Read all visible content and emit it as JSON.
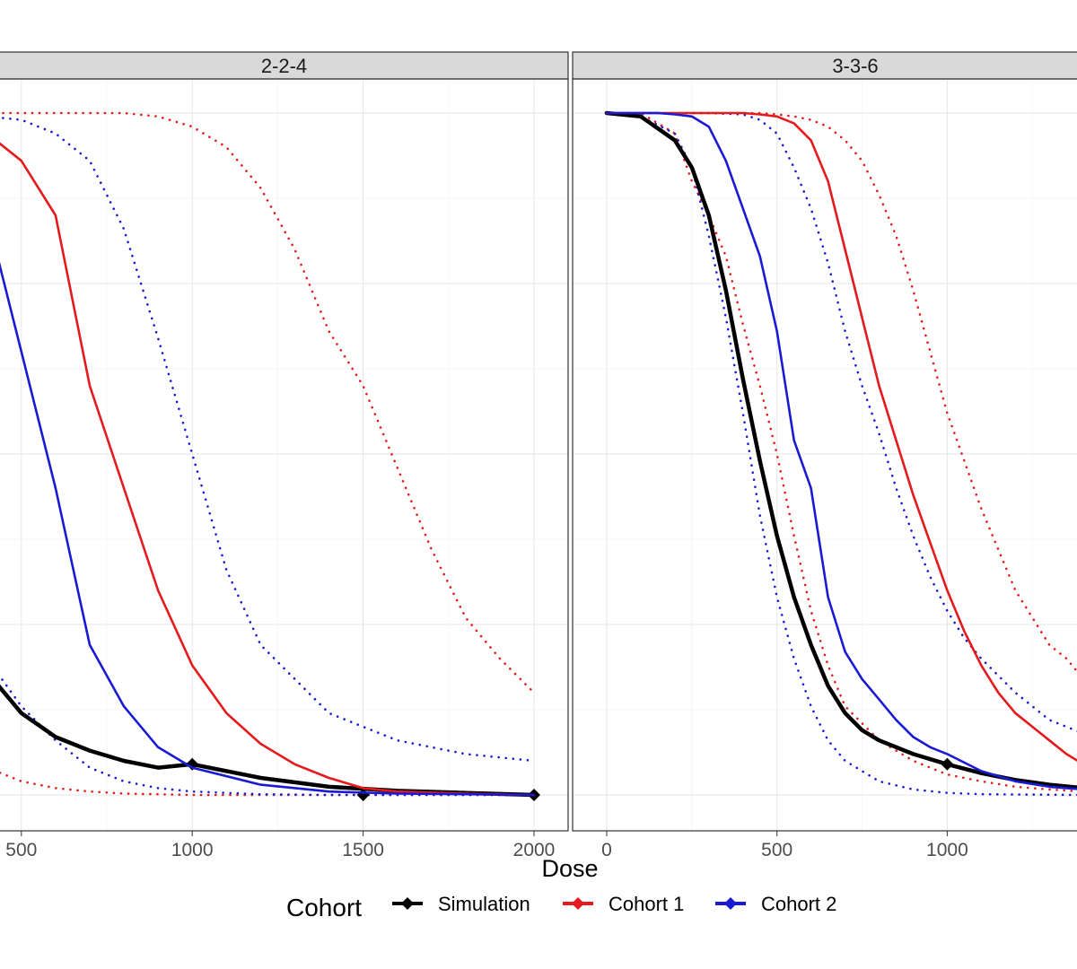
{
  "chart_data": {
    "type": "line",
    "xlabel": "Dose",
    "legend": {
      "title": "Cohort",
      "position": "bottom",
      "entries": [
        {
          "name": "Simulation",
          "color": "#000000"
        },
        {
          "name": "Cohort 1",
          "color": "#e41a1c"
        },
        {
          "name": "Cohort 2",
          "color": "#1a1ad4"
        }
      ]
    },
    "grid": true,
    "panels": [
      {
        "strip": "2-2-4",
        "xlim": [
          -100,
          2100
        ],
        "ylim": [
          -0.05,
          1.05
        ],
        "x_ticks": [
          "500",
          "1000",
          "1500",
          "2000"
        ],
        "x_tick_values": [
          500,
          1000,
          1500,
          2000
        ],
        "series": [
          {
            "name": "Simulation",
            "style": "solid",
            "markers": [
              1000,
              1500,
              2000
            ],
            "x": [
              0,
              100,
              200,
              300,
              400,
              500,
              600,
              700,
              800,
              900,
              1000,
              1200,
              1400,
              1600,
              1800,
              2000
            ],
            "y": [
              0.63,
              0.51,
              0.39,
              0.27,
              0.18,
              0.12,
              0.085,
              0.065,
              0.05,
              0.04,
              0.045,
              0.025,
              0.012,
              0.006,
              0.003,
              0.0
            ]
          },
          {
            "name": "Cohort 1",
            "style": "solid",
            "markers": [],
            "x": [
              0,
              100,
              200,
              300,
              400,
              500,
              600,
              700,
              800,
              900,
              1000,
              1100,
              1200,
              1300,
              1400,
              1500,
              1600,
              1800,
              2000
            ],
            "y": [
              1.0,
              1.0,
              0.995,
              0.99,
              0.97,
              0.93,
              0.85,
              0.6,
              0.45,
              0.3,
              0.19,
              0.12,
              0.075,
              0.045,
              0.025,
              0.01,
              0.005,
              0.002,
              0.0
            ]
          },
          {
            "name": "Cohort 2",
            "style": "solid",
            "markers": [],
            "x": [
              0,
              100,
              200,
              300,
              400,
              500,
              600,
              700,
              800,
              900,
              1000,
              1200,
              1400,
              1600,
              1800,
              2000
            ],
            "y": [
              1.0,
              1.0,
              0.99,
              0.95,
              0.85,
              0.65,
              0.45,
              0.22,
              0.13,
              0.07,
              0.04,
              0.015,
              0.005,
              0.002,
              0.001,
              0.0
            ]
          },
          {
            "name": "Cohort 1 interval",
            "style": "dotted",
            "color": "#e41a1c",
            "markers": [],
            "x": [
              0,
              200,
              400,
              600,
              800,
              900,
              1000,
              1100,
              1200,
              1300,
              1400,
              1500,
              1600,
              1700,
              1800,
              1900,
              2000
            ],
            "y": [
              1.0,
              1.0,
              1.0,
              1.0,
              1.0,
              0.995,
              0.98,
              0.95,
              0.89,
              0.8,
              0.68,
              0.6,
              0.48,
              0.36,
              0.26,
              0.2,
              0.15
            ]
          },
          {
            "name": "Cohort 1 interval",
            "style": "dotted",
            "color": "#e41a1c",
            "markers": [],
            "x": [
              0,
              100,
              200,
              300,
              400,
              500,
              600,
              700,
              800,
              1000,
              1200,
              2000
            ],
            "y": [
              0.3,
              0.24,
              0.15,
              0.08,
              0.04,
              0.02,
              0.01,
              0.005,
              0.002,
              0.0,
              0.0,
              0.0
            ]
          },
          {
            "name": "Cohort 2 interval",
            "style": "dotted",
            "color": "#1a1ad4",
            "markers": [],
            "x": [
              0,
              200,
              400,
              500,
              600,
              700,
              800,
              900,
              1000,
              1100,
              1200,
              1400,
              1600,
              1800,
              2000
            ],
            "y": [
              1.0,
              1.0,
              0.995,
              0.99,
              0.97,
              0.93,
              0.83,
              0.67,
              0.5,
              0.33,
              0.22,
              0.12,
              0.08,
              0.06,
              0.05
            ]
          },
          {
            "name": "Cohort 2 interval",
            "style": "dotted",
            "color": "#1a1ad4",
            "markers": [],
            "x": [
              0,
              200,
              400,
              500,
              600,
              700,
              800,
              900,
              1000,
              1200,
              1400,
              2000
            ],
            "y": [
              0.44,
              0.3,
              0.2,
              0.13,
              0.08,
              0.04,
              0.02,
              0.01,
              0.005,
              0.001,
              0.0,
              0.0
            ]
          }
        ]
      },
      {
        "strip": "3-3-6",
        "xlim": [
          -100,
          2100
        ],
        "ylim": [
          -0.05,
          1.05
        ],
        "x_ticks": [
          "0",
          "500",
          "1000"
        ],
        "x_tick_values": [
          0,
          500,
          1000
        ],
        "series": [
          {
            "name": "Simulation",
            "style": "solid",
            "markers": [
              1000
            ],
            "x": [
              0,
              100,
              200,
              250,
              300,
              350,
              400,
              450,
              500,
              550,
              600,
              650,
              700,
              750,
              800,
              900,
              1000,
              1100,
              1200,
              1300,
              1400
            ],
            "y": [
              1.0,
              0.995,
              0.96,
              0.92,
              0.85,
              0.74,
              0.61,
              0.49,
              0.38,
              0.29,
              0.22,
              0.16,
              0.12,
              0.095,
              0.08,
              0.06,
              0.045,
              0.032,
              0.022,
              0.015,
              0.01
            ]
          },
          {
            "name": "Cohort 1",
            "style": "solid",
            "markers": [],
            "x": [
              0,
              200,
              300,
              400,
              450,
              500,
              550,
              600,
              650,
              700,
              750,
              800,
              850,
              900,
              950,
              1000,
              1050,
              1100,
              1150,
              1200,
              1250,
              1300,
              1350,
              1400
            ],
            "y": [
              1.0,
              1.0,
              1.0,
              1.0,
              0.998,
              0.995,
              0.985,
              0.96,
              0.9,
              0.8,
              0.7,
              0.6,
              0.52,
              0.44,
              0.37,
              0.3,
              0.24,
              0.19,
              0.15,
              0.12,
              0.1,
              0.08,
              0.06,
              0.045
            ]
          },
          {
            "name": "Cohort 2",
            "style": "solid",
            "markers": [],
            "x": [
              0,
              100,
              150,
              200,
              250,
              300,
              350,
              400,
              450,
              500,
              550,
              600,
              650,
              700,
              750,
              800,
              850,
              900,
              950,
              1000,
              1100,
              1200,
              1300,
              1400
            ],
            "y": [
              1.0,
              1.0,
              1.0,
              0.998,
              0.995,
              0.98,
              0.93,
              0.86,
              0.79,
              0.68,
              0.52,
              0.45,
              0.29,
              0.21,
              0.17,
              0.14,
              0.11,
              0.085,
              0.07,
              0.06,
              0.035,
              0.02,
              0.012,
              0.008
            ]
          },
          {
            "name": "Cohort 1 interval",
            "style": "dotted",
            "color": "#e41a1c",
            "markers": [],
            "x": [
              0,
              400,
              450,
              500,
              550,
              600,
              650,
              700,
              750,
              800,
              850,
              900,
              950,
              1000,
              1050,
              1100,
              1150,
              1200,
              1250,
              1300,
              1350,
              1400
            ],
            "y": [
              1.0,
              1.0,
              1.0,
              0.998,
              0.995,
              0.99,
              0.98,
              0.96,
              0.93,
              0.88,
              0.82,
              0.74,
              0.65,
              0.56,
              0.49,
              0.42,
              0.36,
              0.3,
              0.26,
              0.22,
              0.2,
              0.17
            ]
          },
          {
            "name": "Cohort 1 interval",
            "style": "dotted",
            "color": "#e41a1c",
            "markers": [],
            "x": [
              0,
              100,
              200,
              250,
              300,
              350,
              400,
              450,
              500,
              550,
              600,
              650,
              700,
              800,
              900,
              1000,
              1100,
              1200,
              1300,
              1400
            ],
            "y": [
              1.0,
              1.0,
              0.97,
              0.9,
              0.85,
              0.79,
              0.69,
              0.6,
              0.5,
              0.38,
              0.27,
              0.19,
              0.13,
              0.08,
              0.05,
              0.03,
              0.02,
              0.012,
              0.008,
              0.005
            ]
          },
          {
            "name": "Cohort 2 interval",
            "style": "dotted",
            "color": "#1a1ad4",
            "markers": [],
            "x": [
              0,
              300,
              350,
              400,
              450,
              500,
              550,
              600,
              650,
              700,
              750,
              800,
              850,
              900,
              950,
              1000,
              1050,
              1100,
              1200,
              1300,
              1400
            ],
            "y": [
              1.0,
              1.0,
              0.999,
              0.998,
              0.99,
              0.97,
              0.92,
              0.86,
              0.78,
              0.68,
              0.6,
              0.53,
              0.45,
              0.38,
              0.32,
              0.27,
              0.23,
              0.2,
              0.15,
              0.11,
              0.09
            ]
          },
          {
            "name": "Cohort 2 interval",
            "style": "dotted",
            "color": "#1a1ad4",
            "markers": [],
            "x": [
              0,
              100,
              200,
              250,
              300,
              350,
              400,
              450,
              500,
              550,
              600,
              650,
              700,
              800,
              900,
              1000,
              1100,
              1400
            ],
            "y": [
              1.0,
              0.995,
              0.97,
              0.92,
              0.82,
              0.7,
              0.56,
              0.41,
              0.29,
              0.2,
              0.13,
              0.08,
              0.05,
              0.02,
              0.008,
              0.003,
              0.001,
              0.0
            ]
          }
        ]
      }
    ]
  }
}
